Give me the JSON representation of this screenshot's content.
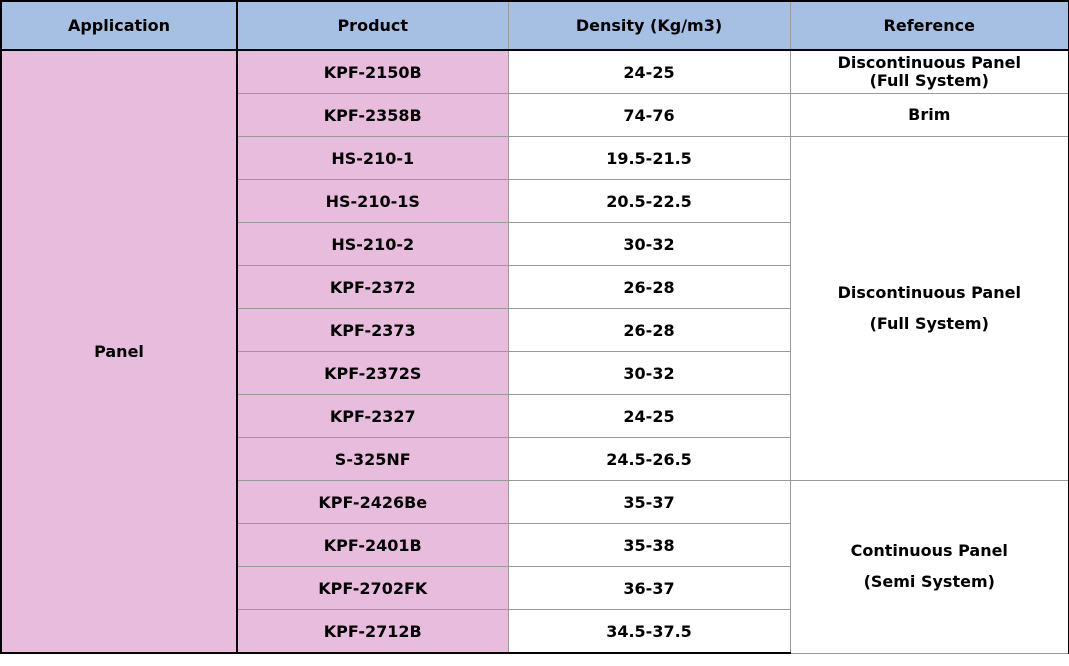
{
  "headers": {
    "application": "Application",
    "product": "Product",
    "density": "Density  (Kg/m3)",
    "reference": "Reference"
  },
  "application": "Panel",
  "rows": [
    {
      "product": "KPF-2150B",
      "density": "24-25"
    },
    {
      "product": "KPF-2358B",
      "density": "74-76"
    },
    {
      "product": "HS-210-1",
      "density": "19.5-21.5"
    },
    {
      "product": "HS-210-1S",
      "density": "20.5-22.5"
    },
    {
      "product": "HS-210-2",
      "density": "30-32"
    },
    {
      "product": "KPF-2372",
      "density": "26-28"
    },
    {
      "product": "KPF-2373",
      "density": "26-28"
    },
    {
      "product": "KPF-2372S",
      "density": "30-32"
    },
    {
      "product": "KPF-2327",
      "density": "24-25"
    },
    {
      "product": "S-325NF",
      "density": "24.5-26.5"
    },
    {
      "product": "KPF-2426Be",
      "density": "35-37"
    },
    {
      "product": "KPF-2401B",
      "density": "35-38"
    },
    {
      "product": "KPF-2702FK",
      "density": "36-37"
    },
    {
      "product": "KPF-2712B",
      "density": "34.5-37.5"
    }
  ],
  "references": [
    {
      "line1": "Discontinuous  Panel",
      "line2": "(Full  System)"
    },
    {
      "line1": "Brim",
      "line2": ""
    },
    {
      "line1": "Discontinuous  Panel",
      "line2": "(Full  System)"
    },
    {
      "line1": "Continuous  Panel",
      "line2": "(Semi  System)"
    }
  ]
}
